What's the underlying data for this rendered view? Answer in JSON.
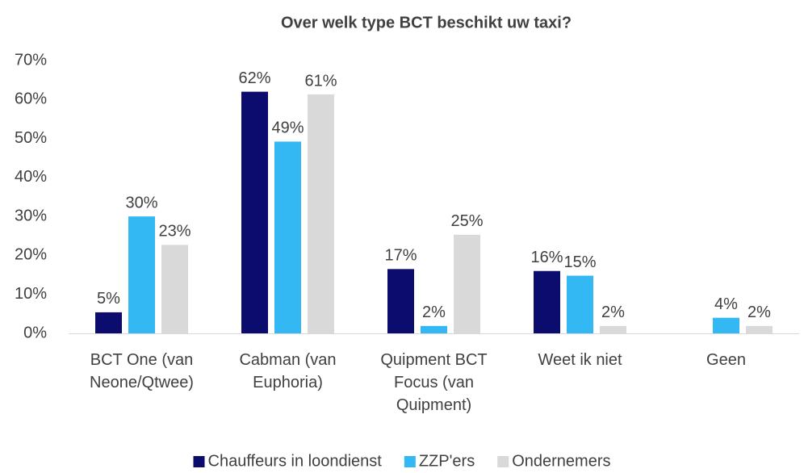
{
  "chart_data": {
    "type": "bar",
    "title": "Over welk type BCT beschikt uw taxi?",
    "categories": [
      "BCT One (van Neone/Qtwee)",
      "Cabman (van Euphoria)",
      "Quipment BCT Focus (van Quipment)",
      "Weet ik niet",
      "Geen"
    ],
    "series": [
      {
        "name": "Chauffeurs in loondienst",
        "color": "#0b0c6e",
        "values": [
          5.4,
          62,
          16.5,
          16,
          null
        ],
        "value_labels": [
          "5%",
          "62%",
          "17%",
          "16%",
          null
        ]
      },
      {
        "name": "ZZP'ers",
        "color": "#33b8f4",
        "values": [
          30,
          49.2,
          1.9,
          14.8,
          4
        ],
        "value_labels": [
          "30%",
          "49%",
          "2%",
          "15%",
          "4%"
        ]
      },
      {
        "name": "Ondernemers",
        "color": "#d9d9d9",
        "values": [
          22.7,
          61.3,
          25.3,
          1.9,
          1.9
        ],
        "value_labels": [
          "23%",
          "61%",
          "25%",
          "2%",
          "2%"
        ]
      }
    ],
    "ylim": [
      0,
      70
    ],
    "yticks": [
      {
        "value": 0,
        "label": "0%"
      },
      {
        "value": 10,
        "label": "10%"
      },
      {
        "value": 20,
        "label": "20%"
      },
      {
        "value": 30,
        "label": "30%"
      },
      {
        "value": 40,
        "label": "40%"
      },
      {
        "value": 50,
        "label": "50%"
      },
      {
        "value": 60,
        "label": "60%"
      },
      {
        "value": 70,
        "label": "70%"
      }
    ],
    "grid": false,
    "legend": "bottom"
  }
}
